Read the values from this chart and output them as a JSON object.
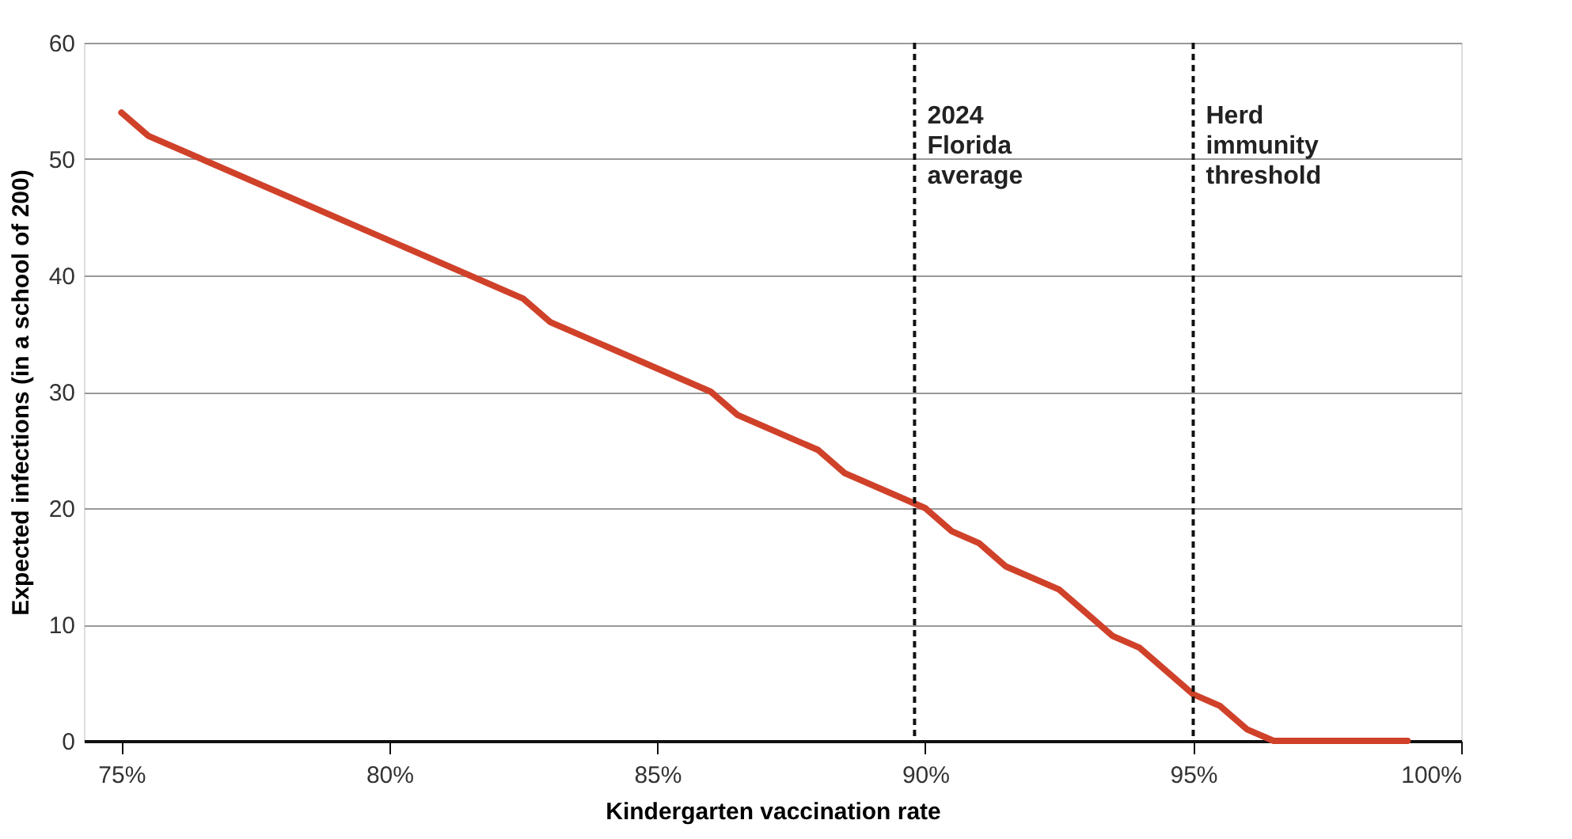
{
  "chart_data": {
    "type": "line",
    "xlabel": "Kindergarten vaccination rate",
    "ylabel": "Expected infections (in a school of 200)",
    "x": [
      75,
      75.5,
      82.5,
      83,
      86,
      86.5,
      88,
      88.5,
      90,
      90.5,
      91,
      91.5,
      92.5,
      93,
      93.5,
      94,
      95,
      95.5,
      96,
      96.5,
      99
    ],
    "series": [
      {
        "color": "#d0412a",
        "values": [
          54,
          52,
          38,
          36,
          30,
          28,
          25,
          23,
          20,
          18,
          17,
          15,
          13,
          11,
          9,
          8,
          4,
          3,
          1,
          0,
          0
        ]
      }
    ],
    "xlim": [
      74.3,
      100
    ],
    "xticks": [
      {
        "value": 75,
        "label": "75%"
      },
      {
        "value": 80,
        "label": "80%"
      },
      {
        "value": 85,
        "label": "85%"
      },
      {
        "value": 90,
        "label": "90%"
      },
      {
        "value": 95,
        "label": "95%"
      },
      {
        "value": 100,
        "label": "100%"
      }
    ],
    "ylim": [
      0,
      60
    ],
    "yticks": [
      0,
      10,
      20,
      30,
      40,
      50,
      60
    ],
    "grid": "y",
    "marker": "none",
    "line_style": "solid",
    "ref_lines": [
      {
        "axis": "x",
        "value": 89.8,
        "label": "2024 Florida average",
        "color": "#111111",
        "line_style": "dashed"
      },
      {
        "axis": "x",
        "value": 95,
        "label": "Herd immunity threshold",
        "color": "#111111",
        "line_style": "dashed"
      }
    ]
  }
}
